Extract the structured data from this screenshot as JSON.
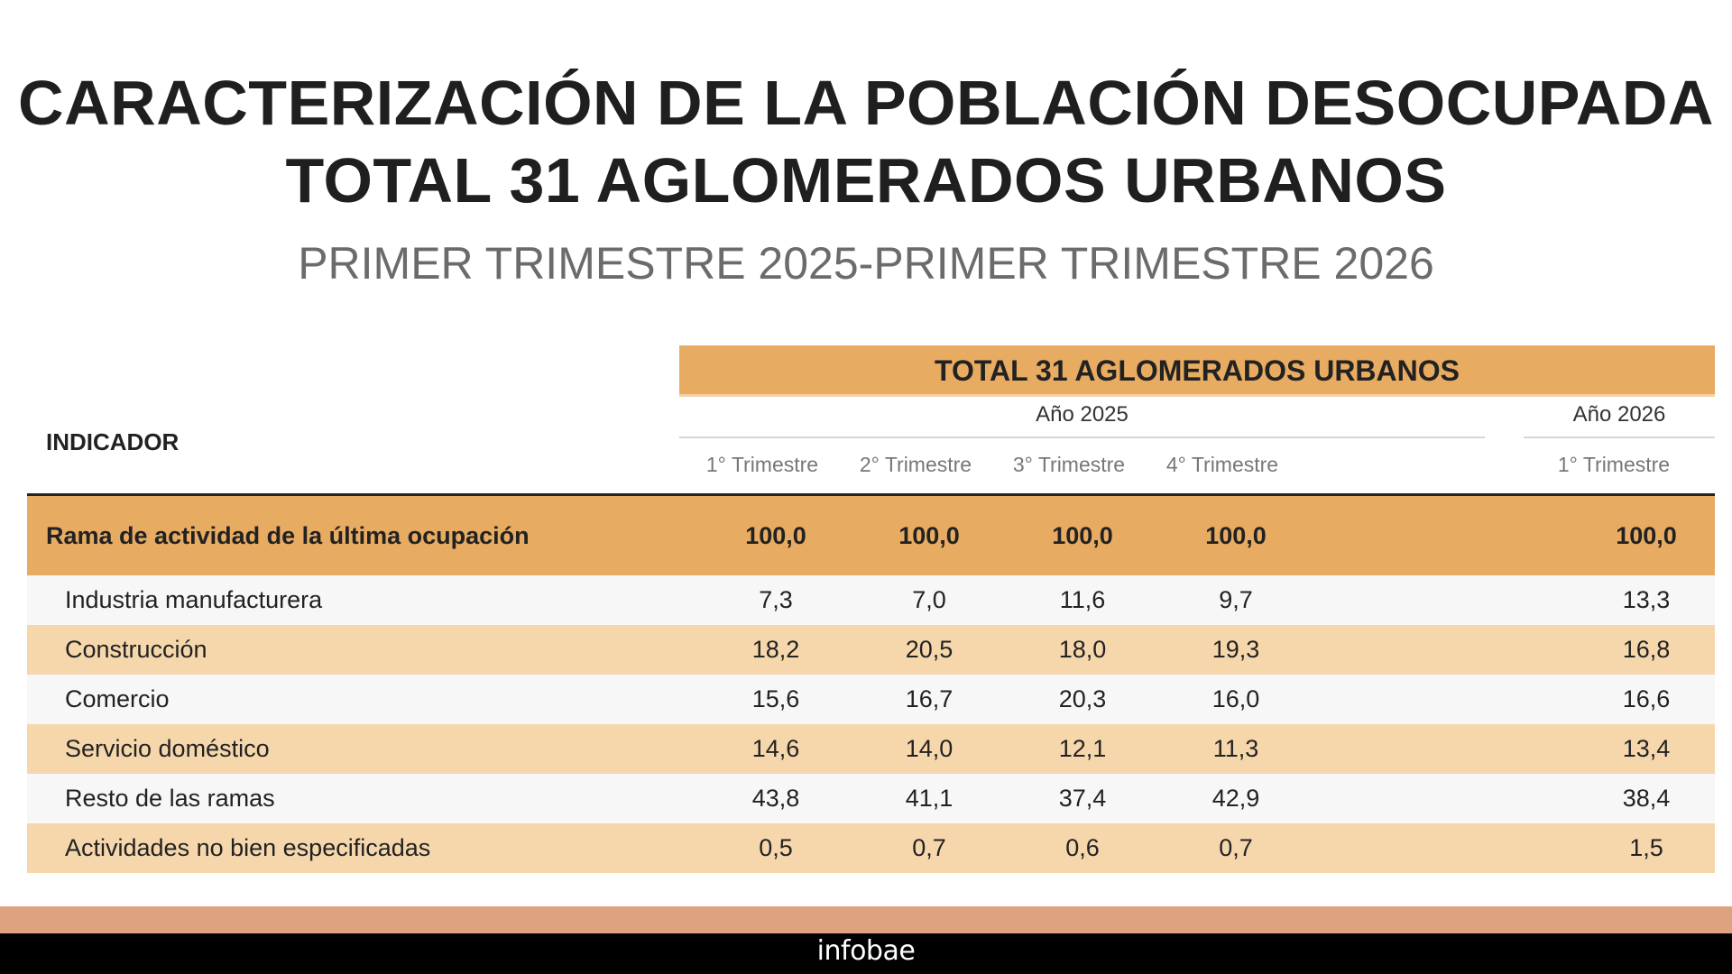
{
  "header": {
    "title_line1": "CARACTERIZACIÓN DE LA POBLACIÓN DESOCUPADA",
    "title_line2": "TOTAL 31 AGLOMERADOS URBANOS",
    "subtitle": "PRIMER TRIMESTRE 2025-PRIMER TRIMESTRE 2026"
  },
  "table": {
    "group_header": "TOTAL 31 AGLOMERADOS URBANOS",
    "indicator_label": "INDICADOR",
    "years": [
      "Año 2025",
      "Año 2026"
    ],
    "quarters": [
      "1° Trimestre",
      "2° Trimestre",
      "3° Trimestre",
      "4° Trimestre",
      "1° Trimestre"
    ],
    "total_row": {
      "label": "Rama de actividad de la última ocupación",
      "values": [
        "100,0",
        "100,0",
        "100,0",
        "100,0",
        "100,0"
      ]
    },
    "rows": [
      {
        "label": "Industria manufacturera",
        "values": [
          "7,3",
          "7,0",
          "11,6",
          "9,7",
          "13,3"
        ]
      },
      {
        "label": "Construcción",
        "values": [
          "18,2",
          "20,5",
          "18,0",
          "19,3",
          "16,8"
        ]
      },
      {
        "label": "Comercio",
        "values": [
          "15,6",
          "16,7",
          "20,3",
          "16,0",
          "16,6"
        ]
      },
      {
        "label": "Servicio doméstico",
        "values": [
          "14,6",
          "14,0",
          "12,1",
          "11,3",
          "13,4"
        ]
      },
      {
        "label": "Resto de las ramas",
        "values": [
          "43,8",
          "41,1",
          "37,4",
          "42,9",
          "38,4"
        ]
      },
      {
        "label": "Actividades no bien especificadas",
        "values": [
          "0,5",
          "0,7",
          "0,6",
          "0,7",
          "1,5"
        ]
      }
    ]
  },
  "footer": {
    "logo_text": "infobae"
  },
  "colors": {
    "header_orange": "#e8ab62",
    "stripe_light": "#f7f7f7",
    "stripe_peach": "#f6d7ac",
    "band": "#dda37e",
    "footer_bg": "#000000"
  }
}
